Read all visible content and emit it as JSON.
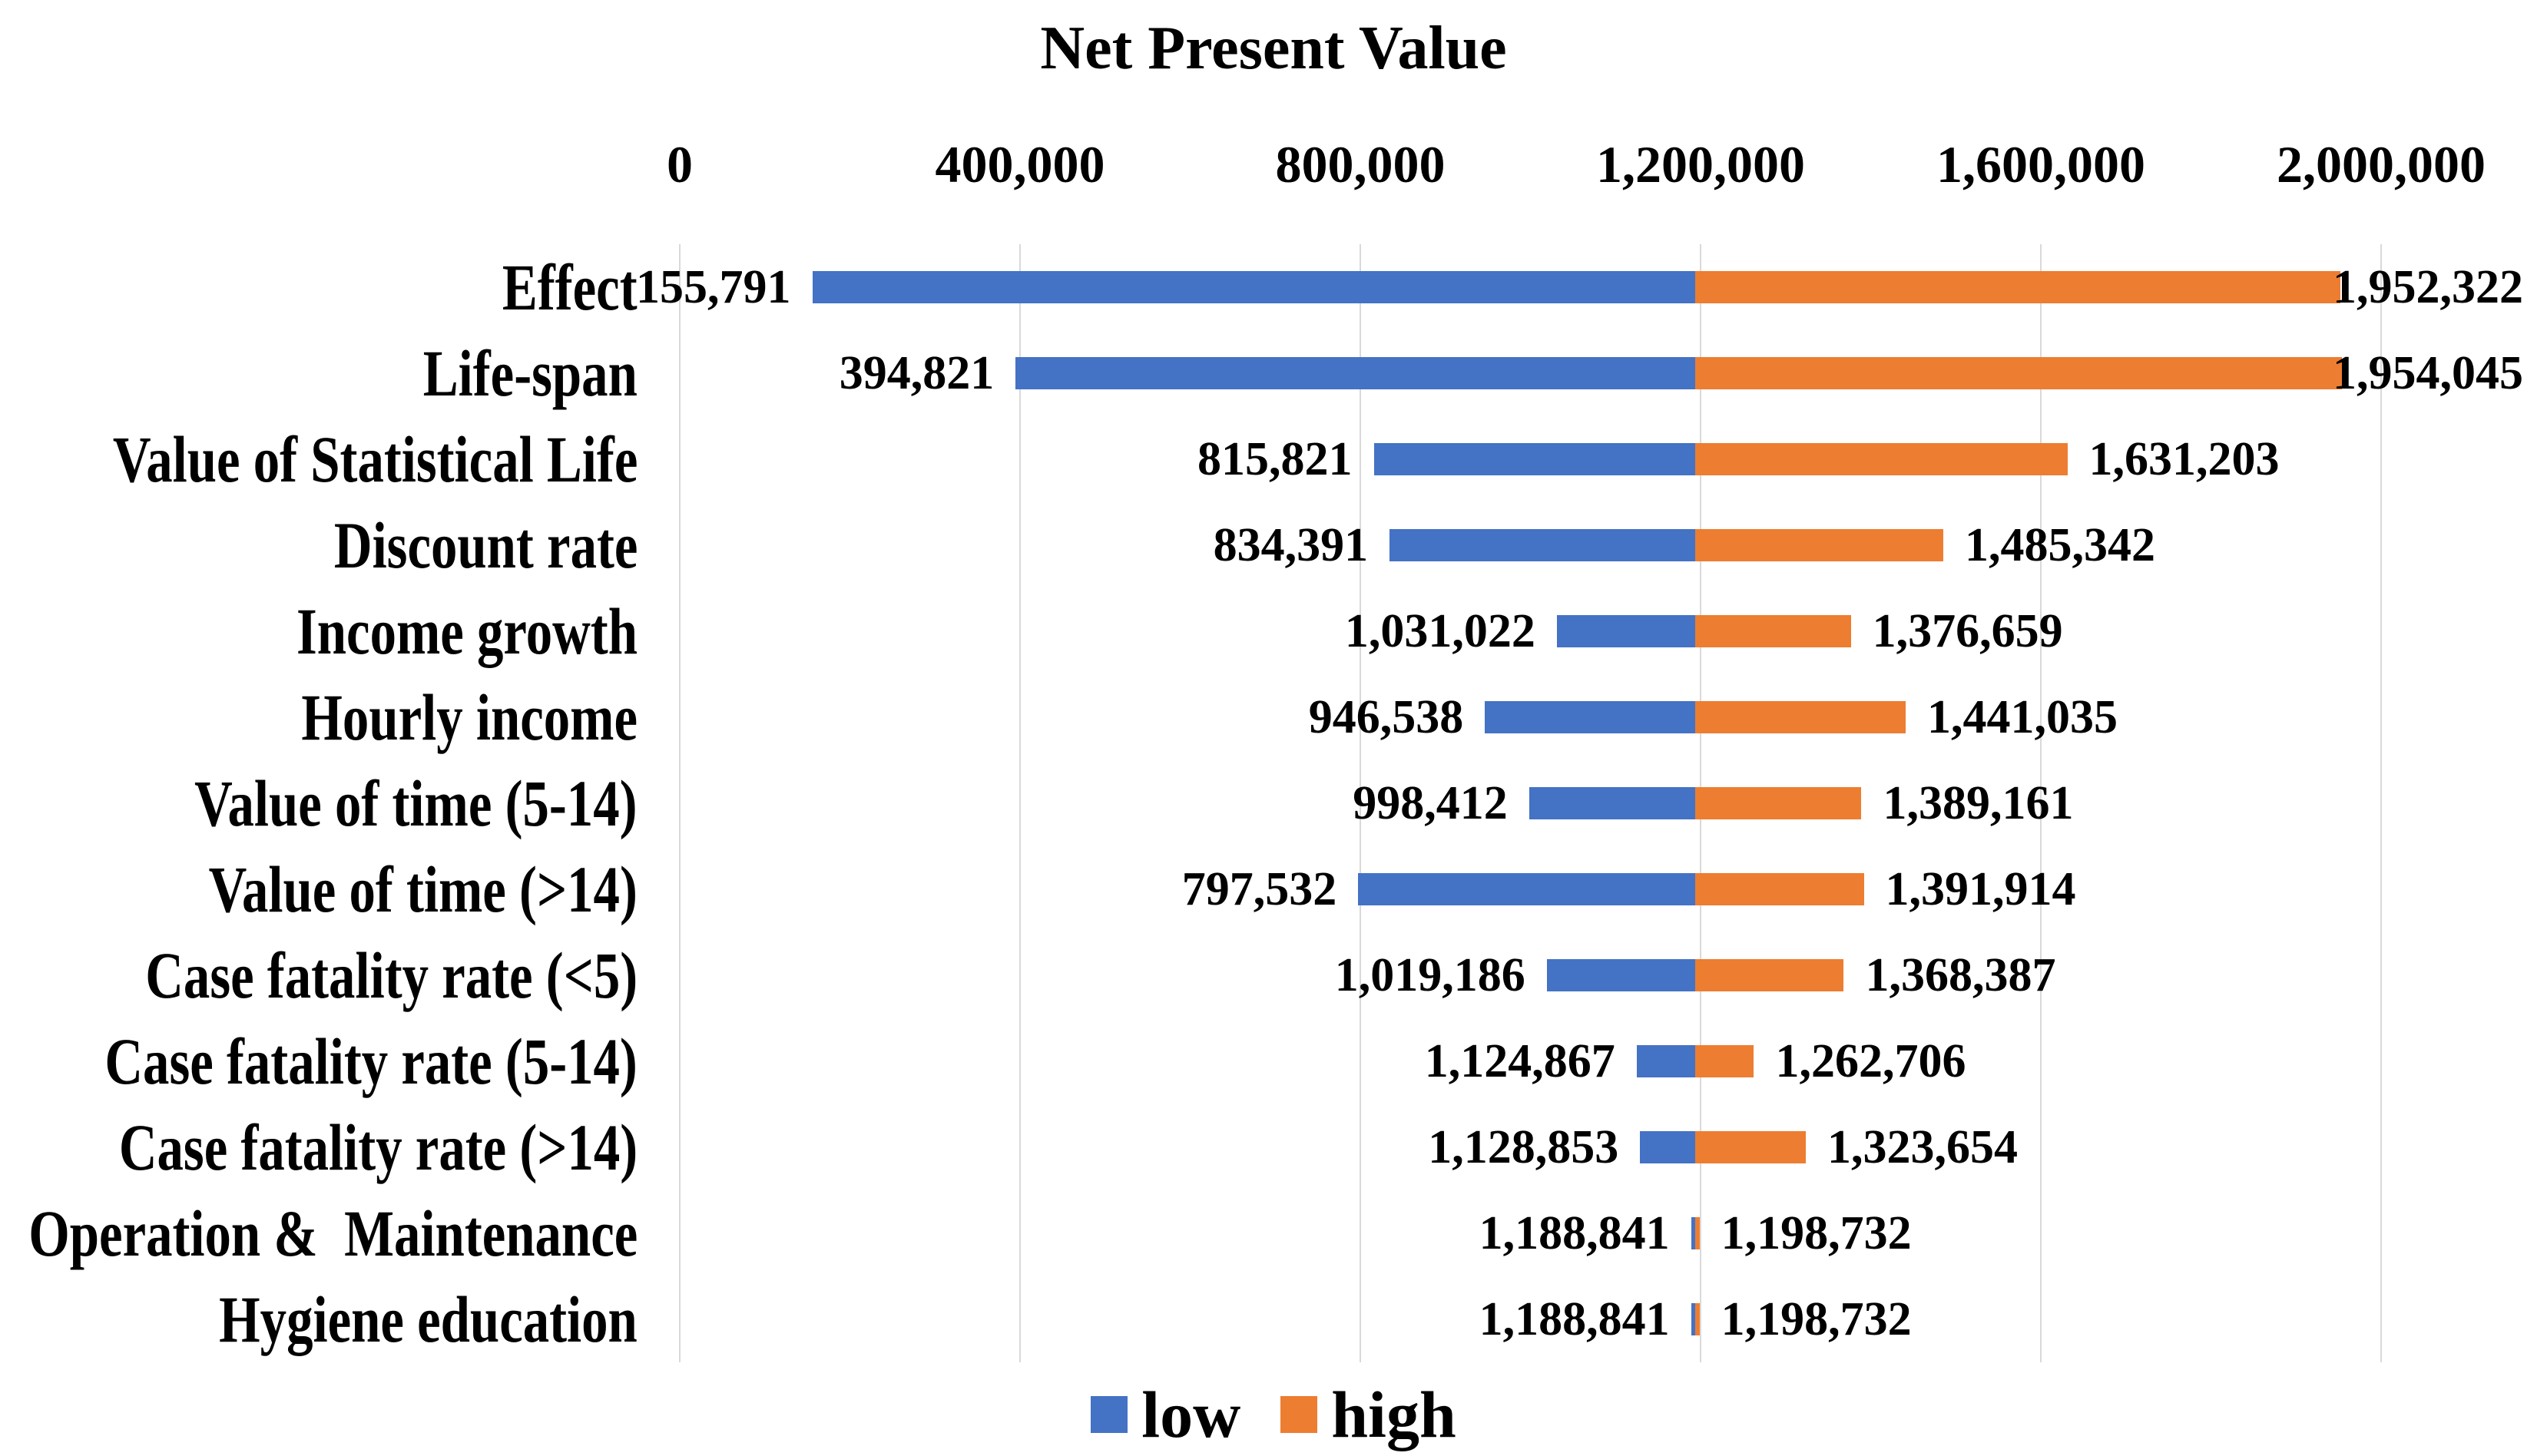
{
  "title": "Net Present Value",
  "legend": {
    "low": "low",
    "high": "high"
  },
  "colors": {
    "low": "#4472C4",
    "high": "#ED7D31",
    "gridline": "#D9D9D9",
    "text": "#000000",
    "background": "#FFFFFF"
  },
  "x_axis": {
    "tick_labels": [
      "0",
      "400,000",
      "800,000",
      "1,200,000",
      "1,600,000",
      "2,000,000"
    ]
  },
  "chart_data": {
    "type": "bar",
    "subtype": "tornado",
    "orientation": "horizontal",
    "title": "Net Present Value",
    "categories": [
      "Effect",
      "Life-span",
      "Value of Statistical Life",
      "Discount rate",
      "Income growth",
      "Hourly income",
      "Value of time (5-14)",
      "Value of time (>14)",
      "Case fatality rate (<5)",
      "Case fatality rate (5-14)",
      "Case fatality rate (>14)",
      "Operation &  Maintenance",
      "Hygiene education"
    ],
    "series": [
      {
        "name": "low",
        "color": "#4472C4",
        "values": [
          155791,
          394821,
          815821,
          834391,
          1031022,
          946538,
          998412,
          797532,
          1019186,
          1124867,
          1128853,
          1188841,
          1188841
        ]
      },
      {
        "name": "high",
        "color": "#ED7D31",
        "values": [
          1952322,
          1954045,
          1631203,
          1485342,
          1376659,
          1441035,
          1389161,
          1391914,
          1368387,
          1262706,
          1323654,
          1198732,
          1198732
        ]
      }
    ],
    "value_labels": {
      "low": [
        "155,791",
        "394,821",
        "815,821",
        "834,391",
        "1,031,022",
        "946,538",
        "998,412",
        "797,532",
        "1,019,186",
        "1,124,867",
        "1,128,853",
        "1,188,841",
        "1,188,841"
      ],
      "high": [
        "1,952,322",
        "1,954,045",
        "1,631,203",
        "1,485,342",
        "1,376,659",
        "1,441,035",
        "1,389,161",
        "1,391,914",
        "1,368,387",
        "1,262,706",
        "1,323,654",
        "1,198,732",
        "1,198,732"
      ]
    },
    "xlim": [
      0,
      2000000
    ],
    "x_ticks": [
      0,
      400000,
      800000,
      1200000,
      1600000,
      2000000
    ],
    "baseline_estimate": 1193786,
    "grid": "vertical",
    "legend_position": "bottom"
  }
}
